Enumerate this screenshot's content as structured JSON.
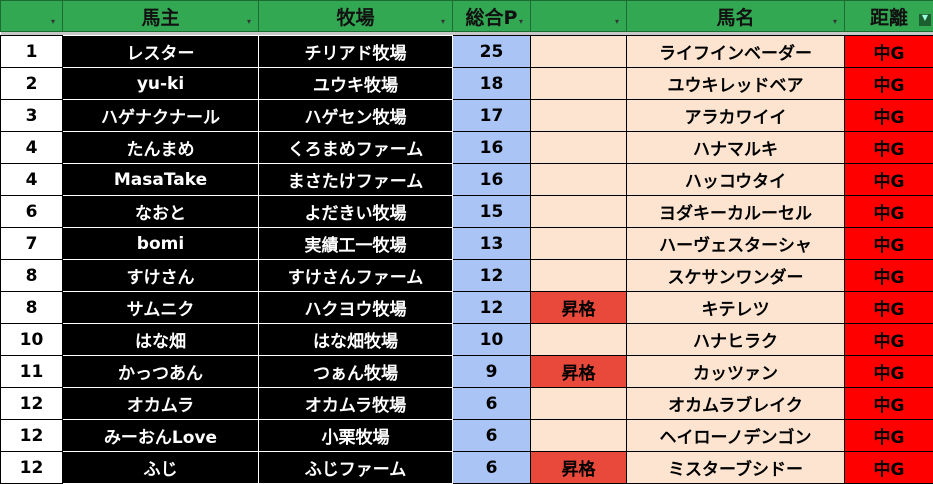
{
  "headers": [
    "",
    "馬主",
    "牧場",
    "総合P",
    "",
    "馬名",
    "距離"
  ],
  "rows": [
    {
      "rank": "1",
      "owner": "レスター",
      "farm": "チリアド牧場",
      "points": "25",
      "promo": "",
      "horse": "ライフインベーダー",
      "dist": "中G"
    },
    {
      "rank": "2",
      "owner": "yu-ki",
      "farm": "ユウキ牧場",
      "points": "18",
      "promo": "",
      "horse": "ユウキレッドベア",
      "dist": "中G"
    },
    {
      "rank": "3",
      "owner": "ハゲナクナール",
      "farm": "ハゲセン牧場",
      "points": "17",
      "promo": "",
      "horse": "アラカワイイ",
      "dist": "中G"
    },
    {
      "rank": "4",
      "owner": "たんまめ",
      "farm": "くろまめファーム",
      "points": "16",
      "promo": "",
      "horse": "ハナマルキ",
      "dist": "中G"
    },
    {
      "rank": "4",
      "owner": "MasaTake",
      "farm": "まさたけファーム",
      "points": "16",
      "promo": "",
      "horse": "ハッコウタイ",
      "dist": "中G"
    },
    {
      "rank": "6",
      "owner": "なおと",
      "farm": "よだきい牧場",
      "points": "15",
      "promo": "",
      "horse": "ヨダキーカルーセル",
      "dist": "中G"
    },
    {
      "rank": "7",
      "owner": "bomi",
      "farm": "実績工一牧場",
      "points": "13",
      "promo": "",
      "horse": "ハーヴェスターシャ",
      "dist": "中G"
    },
    {
      "rank": "8",
      "owner": "すけさん",
      "farm": "すけさんファーム",
      "points": "12",
      "promo": "",
      "horse": "スケサンワンダー",
      "dist": "中G"
    },
    {
      "rank": "8",
      "owner": "サムニク",
      "farm": "ハクヨウ牧場",
      "points": "12",
      "promo": "昇格",
      "horse": "キテレツ",
      "dist": "中G"
    },
    {
      "rank": "10",
      "owner": "はな畑",
      "farm": "はな畑牧場",
      "points": "10",
      "promo": "",
      "horse": "ハナヒラク",
      "dist": "中G"
    },
    {
      "rank": "11",
      "owner": "かっつあん",
      "farm": "つぁん牧場",
      "points": "9",
      "promo": "昇格",
      "horse": "カッツァン",
      "dist": "中G"
    },
    {
      "rank": "12",
      "owner": "オカムラ",
      "farm": "オカムラ牧場",
      "points": "6",
      "promo": "",
      "horse": "オカムラブレイク",
      "dist": "中G"
    },
    {
      "rank": "12",
      "owner": "みーおんLove",
      "farm": "小栗牧場",
      "points": "6",
      "promo": "",
      "horse": "ヘイローノデンゴン",
      "dist": "中G"
    },
    {
      "rank": "12",
      "owner": "ふじ",
      "farm": "ふじファーム",
      "points": "6",
      "promo": "昇格",
      "horse": "ミスターブシドー",
      "dist": "中G"
    }
  ],
  "colors": {
    "header": "#33a853",
    "points": "#a9c4f5",
    "peach": "#fce4d0",
    "distance": "#ff0000",
    "promotion": "#e8493b"
  }
}
